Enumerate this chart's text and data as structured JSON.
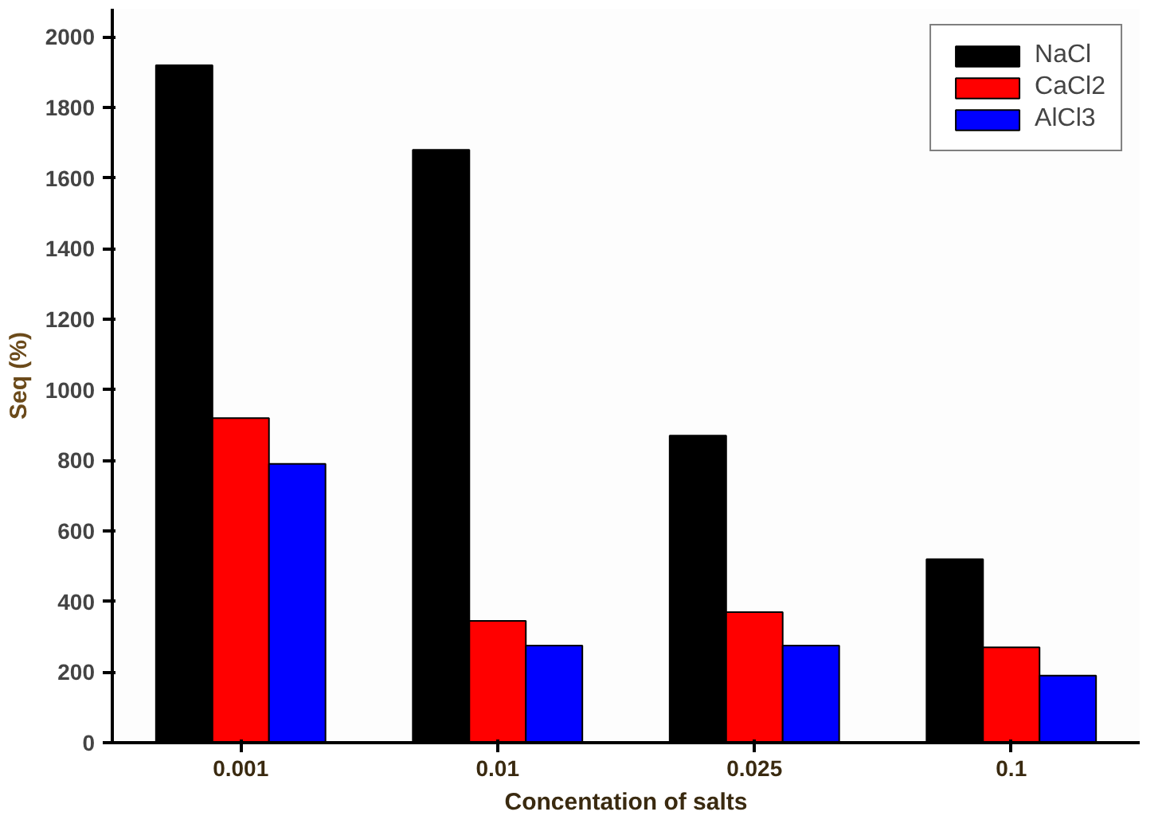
{
  "chart_data": {
    "type": "bar",
    "xlabel": "Concentation of salts",
    "ylabel": "Seq (%)",
    "categories": [
      "0.001",
      "0.01",
      "0.025",
      "0.1"
    ],
    "series": [
      {
        "name": "NaCl",
        "color": "#000000",
        "values": [
          1920,
          1680,
          870,
          520
        ]
      },
      {
        "name": "CaCl2",
        "color": "#ff0000",
        "values": [
          920,
          345,
          370,
          270
        ]
      },
      {
        "name": "AlCl3",
        "color": "#0000ff",
        "values": [
          790,
          275,
          275,
          190
        ]
      }
    ],
    "ylim": [
      0,
      2080
    ],
    "yticks": [
      0,
      200,
      400,
      600,
      800,
      1000,
      1200,
      1400,
      1600,
      1800,
      2000
    ],
    "grid": false,
    "legend": "top right"
  }
}
